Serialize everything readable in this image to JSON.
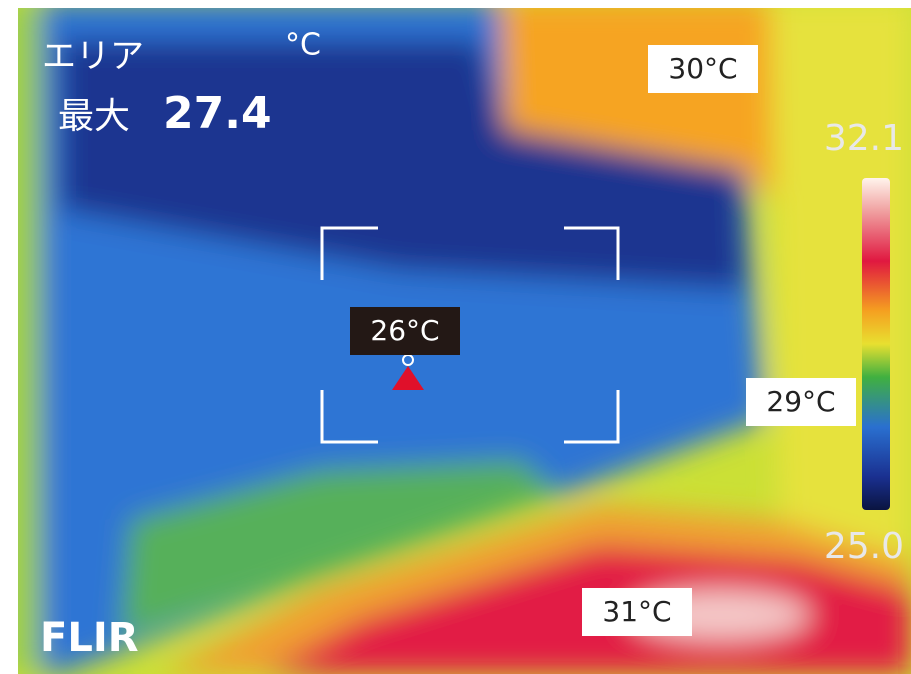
{
  "overlay": {
    "area_label": "エリア",
    "unit": "°C",
    "max_label": "最大",
    "max_value": "27.4"
  },
  "scale": {
    "max": "32.1",
    "min": "25.0"
  },
  "logo": "FLIR",
  "spot_labels": {
    "top_right": "30°C",
    "center": "26°C",
    "right": "29°C",
    "bottom": "31°C"
  }
}
